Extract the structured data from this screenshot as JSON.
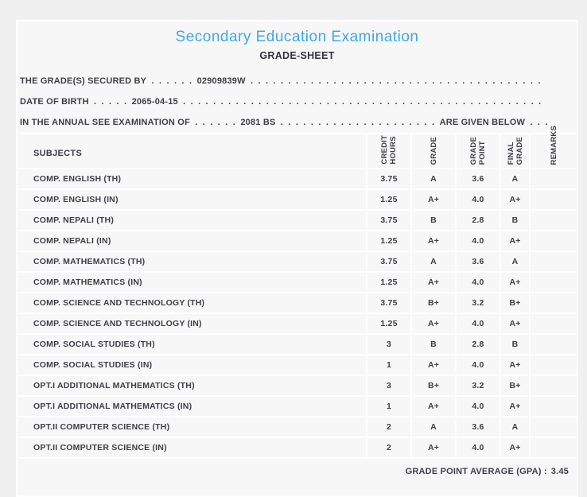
{
  "header": {
    "title": "Secondary Education Examination",
    "subtitle": "GRADE-SHEET"
  },
  "info": {
    "lines": [
      {
        "label": "THE GRADE(S) SECURED BY",
        "dots1": " . . . . . . ",
        "value": "02909839W",
        "dots2": " . . . . . . . . . . . . . . . . . . . . . . . . . . . . . . . . . . . . . . .",
        "trailer": "",
        "dots3": ""
      },
      {
        "label": "DATE OF BIRTH",
        "dots1": " . . . . . ",
        "value": "2065-04-15",
        "dots2": " . . . . . . . . . . . . . . . . . . . . . . . . . . . . . . . . . . . . . . . . . . . . . . . .",
        "trailer": "",
        "dots3": ""
      },
      {
        "label": "IN THE ANNUAL SEE EXAMINATION OF",
        "dots1": " . . . . . . ",
        "value": "2081 BS",
        "dots2": " . . . . . . . . . . . . . . . . . . . . . ",
        "trailer": "ARE GIVEN BELOW",
        "dots3": " . . ."
      }
    ]
  },
  "table": {
    "subjects_header": "SUBJECTS",
    "columns": [
      "CREDIT\nHOURS",
      "GRADE",
      "GRADE\nPOINT",
      "FINAL\nGRADE",
      "REMARKS"
    ],
    "rows": [
      {
        "subject": "COMP. ENGLISH (TH)",
        "credit_hours": "3.75",
        "grade": "A",
        "grade_point": "3.6",
        "final_grade": "A",
        "remarks": ""
      },
      {
        "subject": "COMP. ENGLISH (IN)",
        "credit_hours": "1.25",
        "grade": "A+",
        "grade_point": "4.0",
        "final_grade": "A+",
        "remarks": ""
      },
      {
        "subject": "COMP. NEPALI (TH)",
        "credit_hours": "3.75",
        "grade": "B",
        "grade_point": "2.8",
        "final_grade": "B",
        "remarks": ""
      },
      {
        "subject": "COMP. NEPALI (IN)",
        "credit_hours": "1.25",
        "grade": "A+",
        "grade_point": "4.0",
        "final_grade": "A+",
        "remarks": ""
      },
      {
        "subject": "COMP. MATHEMATICS (TH)",
        "credit_hours": "3.75",
        "grade": "A",
        "grade_point": "3.6",
        "final_grade": "A",
        "remarks": ""
      },
      {
        "subject": "COMP. MATHEMATICS (IN)",
        "credit_hours": "1.25",
        "grade": "A+",
        "grade_point": "4.0",
        "final_grade": "A+",
        "remarks": ""
      },
      {
        "subject": "COMP. SCIENCE AND TECHNOLOGY (TH)",
        "credit_hours": "3.75",
        "grade": "B+",
        "grade_point": "3.2",
        "final_grade": "B+",
        "remarks": ""
      },
      {
        "subject": "COMP. SCIENCE AND TECHNOLOGY (IN)",
        "credit_hours": "1.25",
        "grade": "A+",
        "grade_point": "4.0",
        "final_grade": "A+",
        "remarks": ""
      },
      {
        "subject": "COMP. SOCIAL STUDIES (TH)",
        "credit_hours": "3",
        "grade": "B",
        "grade_point": "2.8",
        "final_grade": "B",
        "remarks": ""
      },
      {
        "subject": "COMP. SOCIAL STUDIES (IN)",
        "credit_hours": "1",
        "grade": "A+",
        "grade_point": "4.0",
        "final_grade": "A+",
        "remarks": ""
      },
      {
        "subject": "OPT.I ADDITIONAL MATHEMATICS (TH)",
        "credit_hours": "3",
        "grade": "B+",
        "grade_point": "3.2",
        "final_grade": "B+",
        "remarks": ""
      },
      {
        "subject": "OPT.I ADDITIONAL MATHEMATICS (IN)",
        "credit_hours": "1",
        "grade": "A+",
        "grade_point": "4.0",
        "final_grade": "A+",
        "remarks": ""
      },
      {
        "subject": "OPT.II COMPUTER SCIENCE (TH)",
        "credit_hours": "2",
        "grade": "A",
        "grade_point": "3.6",
        "final_grade": "A",
        "remarks": ""
      },
      {
        "subject": "OPT.II COMPUTER SCIENCE (IN)",
        "credit_hours": "2",
        "grade": "A+",
        "grade_point": "4.0",
        "final_grade": "A+",
        "remarks": ""
      }
    ]
  },
  "footer": {
    "gpa_label": "GRADE POINT AVERAGE (GPA) :",
    "gpa_value": "3.45"
  },
  "colors": {
    "title_accent": "#3fa8e0",
    "card_background": "#f7f7f8",
    "grid_line": "#ffffff",
    "text": "#3f3e45"
  }
}
